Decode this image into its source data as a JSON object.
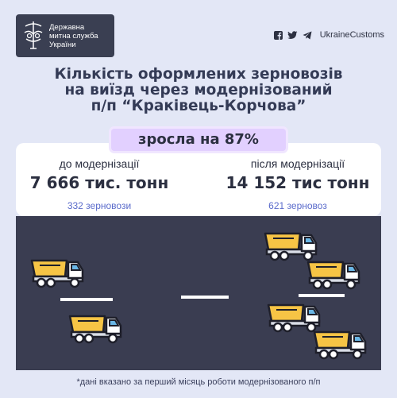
{
  "logo": {
    "line1": "Державна",
    "line2": "митна служба",
    "line3": "України"
  },
  "social": {
    "icons": [
      "facebook-icon",
      "twitter-icon",
      "telegram-icon"
    ],
    "handle": "UkraineCustoms"
  },
  "title": {
    "line1": "Кількість оформлених зерновозів",
    "line2": "на виїзд через модернізований",
    "line3": "п/п “Краківець-Корчова”"
  },
  "badge": "зросла на 87%",
  "before": {
    "label": "до модернізації",
    "value": "7 666 тис. тонн",
    "trucks": "332 зерновози"
  },
  "after": {
    "label": "після модернізації",
    "value": "14 152 тис тонн",
    "trucks": "621 зерновоз"
  },
  "footnote": "*дані вказано за перший місяць роботи модернізованого п/п",
  "colors": {
    "background": "#e3e7f6",
    "road": "#3a3d51",
    "badge": "#e2d0ff",
    "truck_body": "#f6c445",
    "truck_cab": "#ffffff",
    "accent_text": "#5a6bcb"
  }
}
